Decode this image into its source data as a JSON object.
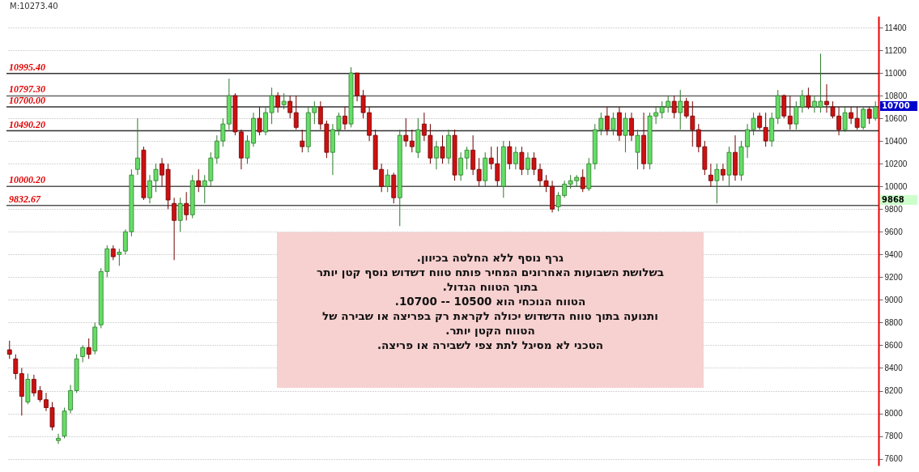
{
  "chart_data": {
    "type": "candlestick",
    "categories": [
      null,
      null,
      null,
      null,
      null,
      null,
      null,
      null,
      null,
      null,
      null,
      null,
      null,
      null,
      null,
      null,
      null,
      null,
      null,
      null,
      null,
      null,
      null,
      null,
      null,
      null,
      null,
      null,
      null,
      null,
      null,
      null,
      null,
      null,
      null,
      null,
      null,
      null,
      null,
      null,
      null,
      null,
      null,
      null,
      null,
      null,
      null,
      null,
      null,
      null,
      null,
      null,
      null,
      null,
      null,
      null,
      null,
      null,
      null,
      null,
      null,
      null,
      null,
      null,
      null,
      null,
      null,
      null,
      null,
      null,
      null,
      null,
      null,
      null,
      null,
      null,
      null,
      null,
      null,
      null,
      null,
      null,
      null,
      null,
      null,
      null,
      null,
      null,
      null,
      null,
      null,
      null,
      null,
      null,
      null,
      null,
      null,
      null,
      null,
      null,
      null,
      null,
      null,
      null,
      null,
      null,
      null,
      null,
      null,
      null,
      null,
      null,
      null,
      null,
      null,
      null,
      null,
      null,
      null,
      null,
      null,
      null,
      null,
      null,
      null,
      null,
      null,
      null,
      null,
      null,
      null,
      null,
      null,
      null,
      null,
      null,
      null,
      null,
      null,
      null,
      null,
      null,
      null
    ],
    "ohlc": [
      [
        8560,
        8640,
        8480,
        8520
      ],
      [
        8480,
        8520,
        8300,
        8350
      ],
      [
        8350,
        8400,
        7980,
        8150
      ],
      [
        8100,
        8350,
        8080,
        8300
      ],
      [
        8300,
        8340,
        8150,
        8180
      ],
      [
        8200,
        8240,
        8100,
        8120
      ],
      [
        8120,
        8180,
        8020,
        8050
      ],
      [
        8050,
        8100,
        7850,
        7880
      ],
      [
        7760,
        7820,
        7730,
        7780
      ],
      [
        7800,
        8050,
        7780,
        8020
      ],
      [
        8030,
        8250,
        8000,
        8200
      ],
      [
        8200,
        8520,
        8180,
        8480
      ],
      [
        8500,
        8600,
        8450,
        8580
      ],
      [
        8580,
        8660,
        8480,
        8520
      ],
      [
        8550,
        8800,
        8520,
        8760
      ],
      [
        8780,
        9280,
        8750,
        9250
      ],
      [
        9250,
        9480,
        9200,
        9450
      ],
      [
        9450,
        9480,
        9350,
        9380
      ],
      [
        9400,
        9450,
        9300,
        9420
      ],
      [
        9430,
        9620,
        9400,
        9600
      ],
      [
        9600,
        10150,
        9560,
        10100
      ],
      [
        10150,
        10600,
        10100,
        10250
      ],
      [
        10320,
        10350,
        9880,
        9900
      ],
      [
        9900,
        10100,
        9850,
        10050
      ],
      [
        10050,
        10200,
        9950,
        10150
      ],
      [
        10200,
        10250,
        10000,
        10100
      ],
      [
        10150,
        10200,
        9800,
        9880
      ],
      [
        9850,
        9900,
        9350,
        9700
      ],
      [
        9700,
        9900,
        9600,
        9850
      ],
      [
        9850,
        9950,
        9700,
        9750
      ],
      [
        9750,
        10100,
        9720,
        10050
      ],
      [
        10050,
        10150,
        9950,
        10000
      ],
      [
        10000,
        10100,
        9850,
        10050
      ],
      [
        10050,
        10300,
        10000,
        10250
      ],
      [
        10250,
        10450,
        10200,
        10400
      ],
      [
        10400,
        10600,
        10350,
        10550
      ],
      [
        10550,
        10950,
        10500,
        10800
      ],
      [
        10800,
        10820,
        10450,
        10480
      ],
      [
        10480,
        10500,
        10150,
        10250
      ],
      [
        10250,
        10450,
        10200,
        10400
      ],
      [
        10380,
        10650,
        10350,
        10600
      ],
      [
        10600,
        10700,
        10450,
        10480
      ],
      [
        10480,
        10700,
        10450,
        10650
      ],
      [
        10650,
        10870,
        10550,
        10800
      ],
      [
        10800,
        10830,
        10650,
        10700
      ],
      [
        10720,
        10820,
        10680,
        10750
      ],
      [
        10750,
        10800,
        10600,
        10650
      ],
      [
        10650,
        10800,
        10500,
        10520
      ],
      [
        10400,
        10500,
        10300,
        10350
      ],
      [
        10350,
        10700,
        10300,
        10650
      ],
      [
        10650,
        10750,
        10550,
        10700
      ],
      [
        10700,
        10750,
        10500,
        10550
      ],
      [
        10550,
        10580,
        10250,
        10300
      ],
      [
        10300,
        10550,
        10100,
        10500
      ],
      [
        10500,
        10650,
        10450,
        10620
      ],
      [
        10620,
        10700,
        10500,
        10550
      ],
      [
        10550,
        11050,
        10520,
        11000
      ],
      [
        11000,
        11000,
        10750,
        10800
      ],
      [
        10800,
        10850,
        10600,
        10650
      ],
      [
        10650,
        10700,
        10400,
        10450
      ],
      [
        10450,
        10500,
        10150,
        10150
      ],
      [
        10150,
        10200,
        9950,
        10000
      ],
      [
        10000,
        10150,
        9950,
        10100
      ],
      [
        10100,
        10120,
        9850,
        9900
      ],
      [
        9900,
        10500,
        9650,
        10450
      ],
      [
        10450,
        10600,
        10350,
        10400
      ],
      [
        10400,
        10500,
        10300,
        10350
      ],
      [
        10300,
        10600,
        10250,
        10500
      ],
      [
        10550,
        10650,
        10400,
        10450
      ],
      [
        10450,
        10550,
        10200,
        10250
      ],
      [
        10250,
        10400,
        10150,
        10350
      ],
      [
        10350,
        10450,
        10200,
        10250
      ],
      [
        10250,
        10500,
        10200,
        10450
      ],
      [
        10450,
        10500,
        10050,
        10100
      ],
      [
        10100,
        10300,
        10050,
        10250
      ],
      [
        10250,
        10350,
        10150,
        10320
      ],
      [
        10320,
        10450,
        10100,
        10150
      ],
      [
        10150,
        10250,
        10000,
        10050
      ],
      [
        10050,
        10300,
        10000,
        10250
      ],
      [
        10250,
        10350,
        10150,
        10200
      ],
      [
        10200,
        10350,
        10000,
        10050
      ],
      [
        10000,
        10400,
        9900,
        10350
      ],
      [
        10350,
        10400,
        10150,
        10200
      ],
      [
        10200,
        10350,
        10150,
        10300
      ],
      [
        10300,
        10350,
        10100,
        10150
      ],
      [
        10150,
        10300,
        10100,
        10250
      ],
      [
        10250,
        10300,
        10100,
        10150
      ],
      [
        10150,
        10200,
        10000,
        10050
      ],
      [
        10050,
        10100,
        9950,
        10000
      ],
      [
        10000,
        10050,
        9770,
        9800
      ],
      [
        9820,
        9950,
        9780,
        9920
      ],
      [
        9920,
        10050,
        9900,
        10020
      ],
      [
        10020,
        10100,
        9980,
        10050
      ],
      [
        10050,
        10100,
        10000,
        10080
      ],
      [
        10080,
        10150,
        9950,
        9980
      ],
      [
        9980,
        10250,
        9960,
        10200
      ],
      [
        10200,
        10550,
        10150,
        10500
      ],
      [
        10500,
        10650,
        10450,
        10600
      ],
      [
        10620,
        10700,
        10450,
        10500
      ],
      [
        10500,
        10650,
        10450,
        10600
      ],
      [
        10650,
        10700,
        10400,
        10450
      ],
      [
        10450,
        10650,
        10300,
        10600
      ],
      [
        10600,
        10650,
        10400,
        10450
      ],
      [
        10300,
        10500,
        10150,
        10450
      ],
      [
        10450,
        10650,
        10150,
        10200
      ],
      [
        10200,
        10650,
        10150,
        10620
      ],
      [
        10620,
        10700,
        10550,
        10650
      ],
      [
        10650,
        10750,
        10600,
        10700
      ],
      [
        10700,
        10800,
        10650,
        10750
      ],
      [
        10750,
        10800,
        10600,
        10650
      ],
      [
        10650,
        10850,
        10500,
        10750
      ],
      [
        10750,
        10780,
        10600,
        10620
      ],
      [
        10620,
        10750,
        10350,
        10500
      ],
      [
        10500,
        10550,
        10300,
        10350
      ],
      [
        10350,
        10400,
        10100,
        10150
      ],
      [
        10100,
        10200,
        10000,
        10050
      ],
      [
        10050,
        10200,
        9850,
        10150
      ],
      [
        10150,
        10200,
        10050,
        10100
      ],
      [
        10100,
        10350,
        10000,
        10300
      ],
      [
        10300,
        10450,
        10050,
        10100
      ],
      [
        10100,
        10400,
        10050,
        10350
      ],
      [
        10350,
        10550,
        10250,
        10500
      ],
      [
        10500,
        10650,
        10450,
        10600
      ],
      [
        10620,
        10650,
        10500,
        10520
      ],
      [
        10520,
        10650,
        10350,
        10400
      ],
      [
        10400,
        10650,
        10350,
        10600
      ],
      [
        10600,
        10850,
        10550,
        10800
      ],
      [
        10800,
        10810,
        10600,
        10620
      ],
      [
        10620,
        10800,
        10500,
        10550
      ],
      [
        10550,
        10750,
        10500,
        10700
      ],
      [
        10700,
        10850,
        10650,
        10800
      ],
      [
        10800,
        10870,
        10680,
        10700
      ],
      [
        10700,
        10800,
        10650,
        10750
      ],
      [
        10700,
        11170,
        10650,
        10750
      ],
      [
        10750,
        10900,
        10650,
        10720
      ],
      [
        10700,
        10750,
        10600,
        10620
      ],
      [
        10620,
        10700,
        10450,
        10500
      ],
      [
        10500,
        10700,
        10480,
        10650
      ],
      [
        10650,
        10700,
        10550,
        10600
      ],
      [
        10600,
        10700,
        10500,
        10520
      ],
      [
        10520,
        10700,
        10500,
        10680
      ],
      [
        10680,
        10700,
        10550,
        10600
      ],
      [
        10600,
        10750,
        10580,
        10700
      ]
    ],
    "ylim": [
      7540,
      11500
    ],
    "yticks": [
      7600,
      7800,
      8000,
      8200,
      8400,
      8600,
      8800,
      9000,
      9200,
      9400,
      9600,
      9800,
      10000,
      10200,
      10400,
      10600,
      10800,
      11000,
      11200,
      11400
    ],
    "grid": "y",
    "tick_labels": "y",
    "ref_lines": [
      {
        "axis": "y",
        "value": 10995.4,
        "label": "10995.40",
        "color": "#333333"
      },
      {
        "axis": "y",
        "value": 10797.3,
        "label": "10797.30",
        "color": "#666666"
      },
      {
        "axis": "y",
        "value": 10700,
        "label": "10700.00",
        "color": "#333333"
      },
      {
        "axis": "y",
        "value": 10490.2,
        "label": "10490.20",
        "color": "#333333"
      },
      {
        "axis": "y",
        "value": 10000.2,
        "label": "10000.20",
        "color": "#555555"
      },
      {
        "axis": "y",
        "value": 9832.67,
        "label": "9832.67",
        "color": "#555555"
      }
    ],
    "annotations": [
      "M:10273.40",
      "גרף נוסף ללא החלטה בכיוון.\nבשלושת השבועות האחרונים המחיר פותח טווח דשדוש נוסף קטן יותר\nבתוך הטווח הגדול.\nהטווח הנוכחי הוא 10500 -- 10700.\nותנועה בתוך טווח הדשדוש יכולה לקראת רק בפריצה או שבירה של\nהטווח הקטן יותר.\nהטכני לא מסיגל לתת צפי לשבירה או פריצה.",
      "10700",
      "9868"
    ]
  }
}
